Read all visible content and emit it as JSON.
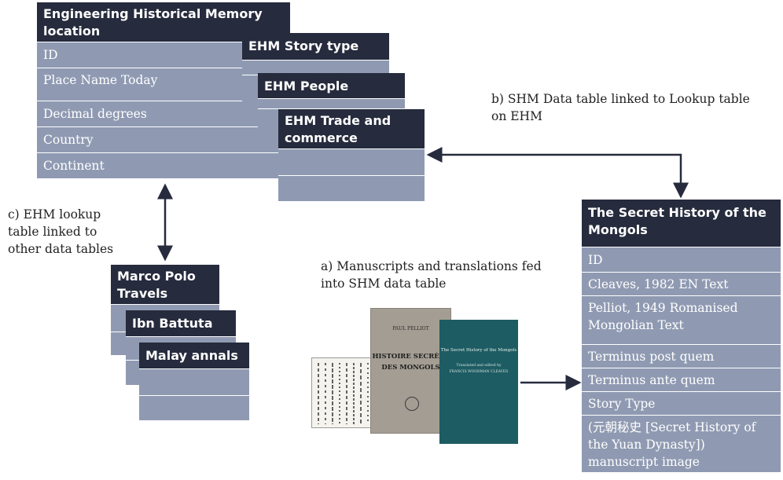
{
  "ehm_location": {
    "title_line1": "Engineering Historical Memory",
    "title_line2": "location",
    "fields": [
      "ID",
      "Place Name Today",
      "Decimal degrees",
      "Country",
      "Continent"
    ]
  },
  "ehm_story_type": {
    "title": "EHM Story type"
  },
  "ehm_people": {
    "title": "EHM People"
  },
  "ehm_trade": {
    "title_line1": "EHM Trade and",
    "title_line2": "commerce"
  },
  "note_b": {
    "line1": "b) SHM Data table linked to Lookup table",
    "line2": "on EHM"
  },
  "note_c": {
    "line1": "c) EHM lookup",
    "line2": "table linked to",
    "line3": "other data tables"
  },
  "note_a": {
    "line1": "a) Manuscripts and translations fed",
    "line2": "into SHM data table"
  },
  "marco_polo": {
    "title_line1": "Marco Polo",
    "title_line2": "Travels"
  },
  "ibn_battuta": {
    "title": "Ibn Battuta"
  },
  "malay_annals": {
    "title": "Malay annals"
  },
  "secret_history": {
    "title_line1": "The Secret History of the",
    "title_line2": "Mongols",
    "fields": [
      {
        "line1": "ID",
        "line2": ""
      },
      {
        "line1": "Cleaves, 1982 EN Text",
        "line2": ""
      },
      {
        "line1": "Pelliot, 1949 Romanised",
        "line2": "Mongolian Text"
      },
      {
        "line1": "Terminus post quem",
        "line2": ""
      },
      {
        "line1": "Terminus ante quem",
        "line2": ""
      },
      {
        "line1": "Story Type",
        "line2": ""
      }
    ],
    "last_field": {
      "line1": "(元朝秘史 [Secret History of",
      "line2": "the Yuan Dynasty])",
      "line3": "manuscript image"
    }
  },
  "books": {
    "pelliot_author": "PAUL PELLIOT",
    "pelliot_title_line1": "HISTOIRE SECRÈTE",
    "pelliot_title_line2": "DES MONGOLS",
    "cleaves_title": "The Secret History of the Mongols",
    "cleaves_subtitle": "Translated and edited by",
    "cleaves_author": "FRANCIS WOODMAN CLEAVES"
  },
  "colors": {
    "header": "#262b3d",
    "row": "#8f9ab2",
    "teal_book": "#1d5c63",
    "grey_book": "#a39d93"
  }
}
